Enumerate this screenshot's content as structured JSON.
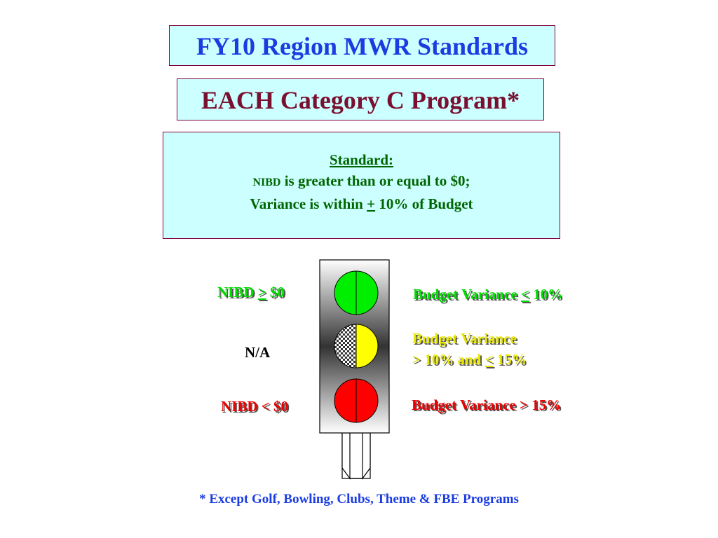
{
  "title": "FY10 Region MWR Standards",
  "subtitle": "EACH Category C Program*",
  "standard": {
    "heading": "Standard:",
    "line1_abbr": "NIBD",
    "line1_rest": " is greater than or equal to $0;",
    "line2_pre": "Variance is within ",
    "line2_sym": "+",
    "line2_post": " 10% of Budget"
  },
  "left_labels": {
    "green_pre": "NIBD ",
    "green_sym": ">",
    "green_post": " $0",
    "yellow": "N/A",
    "red": "NIBD < $0"
  },
  "right_labels": {
    "green_pre": "Budget Variance ",
    "green_sym": "<",
    "green_post": " 10%",
    "yellow_line1": "Budget Variance",
    "yellow_line2_pre": "> 10% and ",
    "yellow_line2_sym": "<",
    "yellow_line2_post": " 15%",
    "red": "Budget Variance > 15%"
  },
  "footnote": "* Except Golf, Bowling, Clubs, Theme & FBE Programs",
  "colors": {
    "light_green": "#00ee00",
    "light_yellow": "#ffff00",
    "light_red": "#ff0000"
  }
}
